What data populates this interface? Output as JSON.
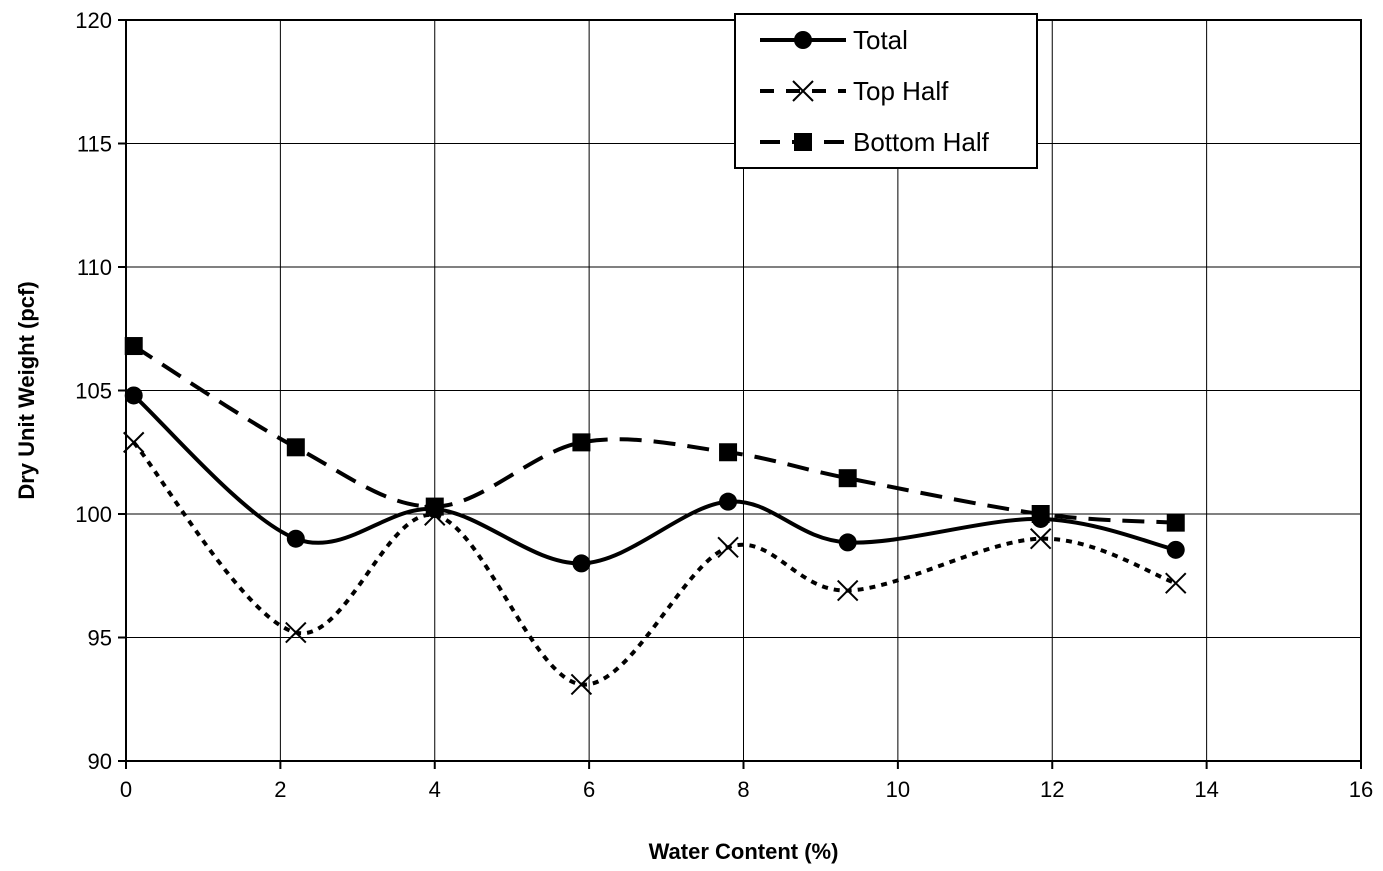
{
  "chart_data": {
    "type": "line",
    "xlabel": "Water Content (%)",
    "ylabel": "Dry Unit Weight (pcf)",
    "xlim": [
      0,
      16
    ],
    "ylim": [
      90,
      120
    ],
    "xticks": [
      0,
      2,
      4,
      6,
      8,
      10,
      12,
      14,
      16
    ],
    "yticks": [
      90,
      95,
      100,
      105,
      110,
      115,
      120
    ],
    "grid": true,
    "legend_position": "top-right",
    "series": [
      {
        "name": "Total",
        "marker": "circle",
        "line": "solid",
        "color": "#000000",
        "points": [
          [
            0.1,
            104.8
          ],
          [
            2.2,
            99.0
          ],
          [
            4.0,
            100.2
          ],
          [
            5.9,
            98.0
          ],
          [
            7.8,
            100.5
          ],
          [
            9.35,
            98.85
          ],
          [
            11.85,
            99.8
          ],
          [
            13.6,
            98.55
          ]
        ]
      },
      {
        "name": "Top Half",
        "marker": "x",
        "line": "dotted",
        "color": "#000000",
        "points": [
          [
            0.1,
            102.9
          ],
          [
            2.2,
            95.2
          ],
          [
            4.0,
            99.95
          ],
          [
            5.9,
            93.1
          ],
          [
            7.8,
            98.65
          ],
          [
            9.35,
            96.9
          ],
          [
            11.85,
            99.0
          ],
          [
            13.6,
            97.2
          ]
        ]
      },
      {
        "name": "Bottom Half",
        "marker": "square",
        "line": "dashed",
        "color": "#000000",
        "points": [
          [
            0.1,
            106.8
          ],
          [
            2.2,
            102.7
          ],
          [
            4.0,
            100.3
          ],
          [
            5.9,
            102.9
          ],
          [
            7.8,
            102.5
          ],
          [
            9.35,
            101.45
          ],
          [
            11.85,
            100.0
          ],
          [
            13.6,
            99.65
          ]
        ]
      }
    ]
  }
}
